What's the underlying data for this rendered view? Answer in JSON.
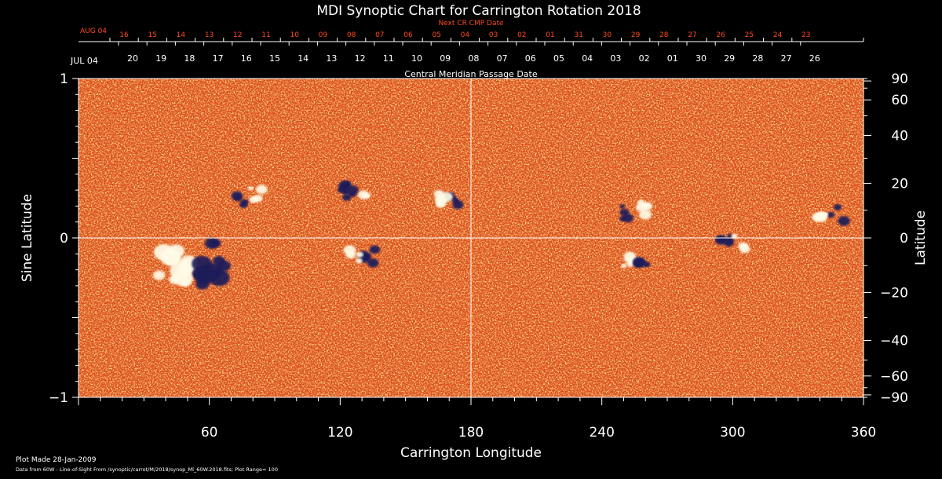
{
  "chart_data": {
    "type": "heatmap",
    "title": "MDI Synoptic Chart for Carrington Rotation 2018",
    "xlabel": "Carrington Longitude",
    "ylabel_left": "Sine Latitude",
    "ylabel_right": "Latitude",
    "xlim": [
      0,
      360
    ],
    "ylim": [
      -1,
      1
    ],
    "x_ticks": [
      60,
      120,
      180,
      240,
      300,
      360
    ],
    "y_ticks_left": [
      {
        "value": 1,
        "label": "1"
      },
      {
        "value": 0,
        "label": "0"
      },
      {
        "value": -1,
        "label": "−1"
      }
    ],
    "y_ticks_right_deg": [
      90,
      60,
      40,
      20,
      0,
      -20,
      -40,
      -60,
      -90
    ],
    "y_ticks_right_labels": [
      "90",
      "60",
      "40",
      "20",
      "0",
      "−20",
      "−40",
      "−60",
      "−90"
    ],
    "top_axis_title": "Next CR CMP Date",
    "top_axis_color": "#ff4a1a",
    "top_axis_first": "AUG 04",
    "top_axis_ticks": [
      "16",
      "15",
      "14",
      "13",
      "12",
      "11",
      "10",
      "09",
      "08",
      "07",
      "06",
      "05",
      "04",
      "03",
      "02",
      "01",
      "31",
      "30",
      "29",
      "28",
      "27",
      "26",
      "25",
      "24",
      "23"
    ],
    "second_axis_first": "JUL 04",
    "second_axis_ticks": [
      "20",
      "19",
      "18",
      "17",
      "16",
      "15",
      "14",
      "13",
      "12",
      "11",
      "10",
      "09",
      "08",
      "07",
      "06",
      "05",
      "04",
      "03",
      "02",
      "01",
      "30",
      "29",
      "28",
      "27",
      "26"
    ],
    "second_axis_title": "Central Meridian Passage Date",
    "background_field_color": "#e2531c",
    "active_regions": [
      {
        "lon": 52,
        "sinlat": -0.17,
        "note": "bipolar"
      },
      {
        "lon": 78,
        "sinlat": 0.26
      },
      {
        "lon": 130,
        "sinlat": -0.12
      },
      {
        "lon": 127,
        "sinlat": 0.29
      },
      {
        "lon": 170,
        "sinlat": 0.23
      },
      {
        "lon": 255,
        "sinlat": 0.17
      },
      {
        "lon": 255,
        "sinlat": -0.16
      },
      {
        "lon": 300,
        "sinlat": -0.04
      },
      {
        "lon": 345,
        "sinlat": 0.16
      }
    ]
  },
  "footer": {
    "plot_made": "Plot Made 28-Jan-2009",
    "data_source": "Data from 60W - Line-of-Sight From /synoptic/carrot/M/2018/synop_Ml_60W.2018.fits; Plot Range= 100"
  }
}
